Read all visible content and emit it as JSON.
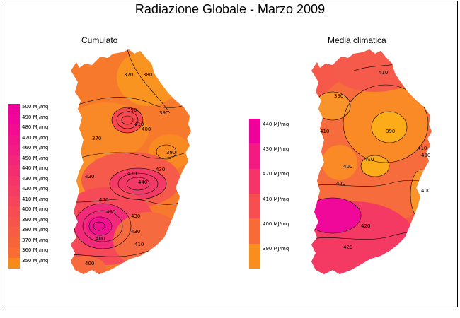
{
  "title": "Radiazione Globale - Marzo 2009",
  "left_panel": {
    "title": "Cumulato",
    "legend": [
      {
        "label": "500 MJ/mq",
        "color": "#f0009a"
      },
      {
        "label": "490 MJ/mq",
        "color": "#f2049a"
      },
      {
        "label": "480 MJ/mq",
        "color": "#f30c92"
      },
      {
        "label": "470 MJ/mq",
        "color": "#f3148a"
      },
      {
        "label": "460 MJ/mq",
        "color": "#f41c82"
      },
      {
        "label": "450 MJ/mq",
        "color": "#f4247a"
      },
      {
        "label": "440 MJ/mq",
        "color": "#f52c72"
      },
      {
        "label": "430 MJ/mq",
        "color": "#f5346a"
      },
      {
        "label": "420 MJ/mq",
        "color": "#f63c62"
      },
      {
        "label": "410 MJ/mq",
        "color": "#f6445a"
      },
      {
        "label": "400 MJ/mq",
        "color": "#f74c52"
      },
      {
        "label": "390 MJ/mq",
        "color": "#f7544a"
      },
      {
        "label": "380 MJ/mq",
        "color": "#f85c42"
      },
      {
        "label": "370 MJ/mq",
        "color": "#f8643a"
      },
      {
        "label": "360 MJ/mq",
        "color": "#f96c32"
      },
      {
        "label": "350 MJ/mq",
        "color": "#fa8a18"
      }
    ],
    "contour_labels": [
      "370",
      "380",
      "390",
      "390",
      "410",
      "370",
      "400",
      "390",
      "430",
      "430",
      "420",
      "440",
      "400",
      "430",
      "440",
      "450",
      "430",
      "410",
      "400"
    ]
  },
  "right_panel": {
    "title": "Media climatica",
    "legend": [
      {
        "label": "440 MJ/mq",
        "color": "#f0009a"
      },
      {
        "label": "430 MJ/mq",
        "color": "#f31a82"
      },
      {
        "label": "420 MJ/mq",
        "color": "#f5346a"
      },
      {
        "label": "410 MJ/mq",
        "color": "#f74e52"
      },
      {
        "label": "400 MJ/mq",
        "color": "#f86a36"
      },
      {
        "label": "390 MJ/mq",
        "color": "#fa8e1c"
      }
    ],
    "contour_labels": [
      "410",
      "390",
      "410",
      "390",
      "400",
      "410",
      "400",
      "410",
      "420",
      "400",
      "420",
      "420"
    ]
  }
}
